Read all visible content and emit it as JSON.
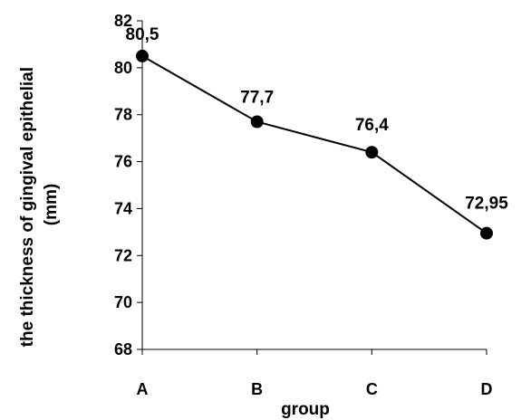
{
  "chart_data": {
    "type": "line",
    "title": "",
    "xlabel": "group",
    "ylabel_lines": [
      "the thickness of gingival epithelial",
      "(mm)"
    ],
    "categories": [
      "A",
      "B",
      "C",
      "D"
    ],
    "series": [
      {
        "values": [
          80.5,
          77.7,
          76.4,
          72.95
        ]
      }
    ],
    "data_labels": [
      "80,5",
      "77,7",
      "76,4",
      "72,95"
    ],
    "ylim": [
      68,
      82
    ],
    "yticks": [
      68,
      70,
      72,
      74,
      76,
      78,
      80,
      82
    ],
    "grid": false,
    "legend": "none",
    "line_color": "#000000",
    "marker_color": "#000000"
  }
}
